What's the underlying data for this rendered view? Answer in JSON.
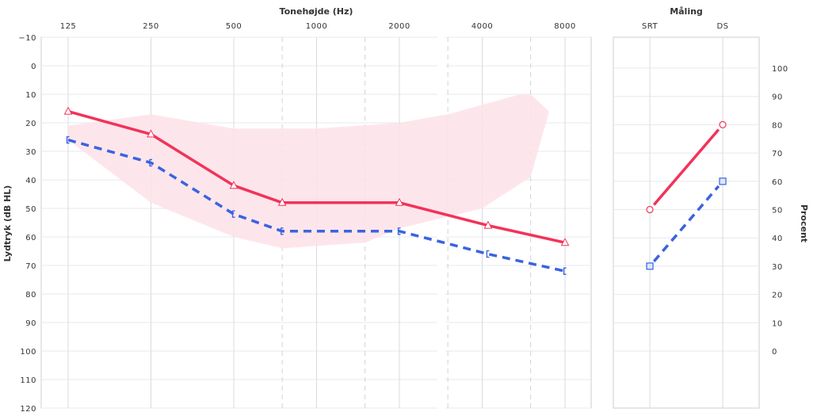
{
  "chart_data": [
    {
      "type": "line",
      "title": "Tonehøjde (Hz)",
      "ylabel": "Lydtryk (dB HL)",
      "x_ticks": [
        "125",
        "250",
        "500",
        "1000",
        "2000",
        "4000",
        "8000"
      ],
      "y_ticks": [
        "−10",
        "0",
        "10",
        "20",
        "30",
        "40",
        "50",
        "60",
        "70",
        "80",
        "90",
        "100",
        "110",
        "120"
      ],
      "ylim": [
        -10,
        120
      ],
      "y_inverted": true,
      "x_scale": "log2",
      "grid": true,
      "dashed_gridlines_at": [
        750,
        1500,
        3000,
        6000
      ],
      "series": [
        {
          "marker": "triangle",
          "color": "#f2335a",
          "line": "solid",
          "points": [
            {
              "x": 125,
              "y": 16
            },
            {
              "x": 250,
              "y": 24
            },
            {
              "x": 500,
              "y": 42
            },
            {
              "x": 750,
              "y": 48
            },
            {
              "x": 2000,
              "y": 48
            },
            {
              "x": 4200,
              "y": 56
            },
            {
              "x": 8000,
              "y": 62
            }
          ]
        },
        {
          "marker": "bracket",
          "color": "#3a63e0",
          "line": "dashed",
          "points": [
            {
              "x": 125,
              "y": 26
            },
            {
              "x": 250,
              "y": 34
            },
            {
              "x": 500,
              "y": 52
            },
            {
              "x": 750,
              "y": 58
            },
            {
              "x": 2000,
              "y": 58
            },
            {
              "x": 4200,
              "y": 66
            },
            {
              "x": 8000,
              "y": 72
            }
          ]
        }
      ],
      "shaded_area": {
        "color": "#fde2e7",
        "upper": [
          [
            125,
            21
          ],
          [
            250,
            17
          ],
          [
            500,
            22
          ],
          [
            1000,
            22
          ],
          [
            2000,
            20
          ],
          [
            3000,
            17
          ],
          [
            5500,
            10
          ],
          [
            6000,
            10
          ],
          [
            7000,
            16
          ]
        ],
        "lower": [
          [
            7000,
            16
          ],
          [
            6000,
            39
          ],
          [
            4000,
            50
          ],
          [
            2000,
            57
          ],
          [
            1500,
            62
          ],
          [
            750,
            64
          ],
          [
            500,
            60
          ],
          [
            250,
            48
          ],
          [
            125,
            26
          ]
        ]
      }
    },
    {
      "type": "line",
      "title": "Måling",
      "ylabel": "Procent",
      "categories": [
        "SRT",
        "DS"
      ],
      "y_ticks": [
        "100",
        "90",
        "80",
        "70",
        "60",
        "50",
        "40",
        "30",
        "20",
        "10",
        "0"
      ],
      "ylim": [
        0,
        100
      ],
      "grid": true,
      "series": [
        {
          "marker": "circle",
          "color": "#f2335a",
          "line": "solid",
          "values": [
            50,
            80
          ]
        },
        {
          "marker": "square",
          "color": "#3a63e0",
          "line": "dashed",
          "values": [
            30,
            60
          ]
        }
      ]
    }
  ]
}
